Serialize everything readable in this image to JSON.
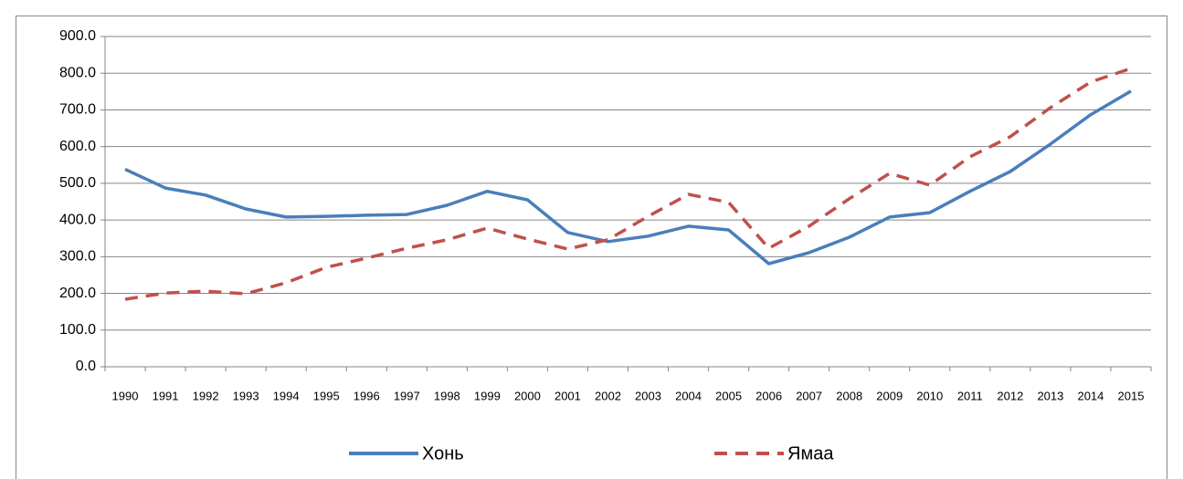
{
  "chart_data": {
    "type": "line",
    "categories": [
      "1990",
      "1991",
      "1992",
      "1993",
      "1994",
      "1995",
      "1996",
      "1997",
      "1998",
      "1999",
      "2000",
      "2001",
      "2002",
      "2003",
      "2004",
      "2005",
      "2006",
      "2007",
      "2008",
      "2009",
      "2010",
      "2011",
      "2012",
      "2013",
      "2014",
      "2015"
    ],
    "series": [
      {
        "name": "Хонь",
        "color": "#4a7ebb",
        "dash": false,
        "values": [
          538,
          487,
          468,
          430,
          408,
          410,
          413,
          415,
          440,
          478,
          455,
          366,
          341,
          356,
          383,
          373,
          281,
          311,
          353,
          408,
          420,
          478,
          532,
          607,
          687,
          751
        ]
      },
      {
        "name": "Ямаа",
        "color": "#c0504d",
        "dash": true,
        "values": [
          184,
          201,
          206,
          199,
          229,
          271,
          296,
          323,
          346,
          378,
          348,
          321,
          346,
          410,
          470,
          448,
          323,
          383,
          458,
          527,
          495,
          572,
          627,
          706,
          776,
          813
        ]
      }
    ],
    "ylim": [
      0,
      900
    ],
    "yticks": [
      {
        "value": 0,
        "label": "0.0"
      },
      {
        "value": 100,
        "label": "100.0"
      },
      {
        "value": 200,
        "label": "200.0"
      },
      {
        "value": 300,
        "label": "300.0"
      },
      {
        "value": 400,
        "label": "400.0"
      },
      {
        "value": 500,
        "label": "500.0"
      },
      {
        "value": 600,
        "label": "600.0"
      },
      {
        "value": 700,
        "label": "700.0"
      },
      {
        "value": 800,
        "label": "800.0"
      },
      {
        "value": 900,
        "label": "900.0"
      }
    ],
    "grid": true,
    "legend": "bottom"
  }
}
